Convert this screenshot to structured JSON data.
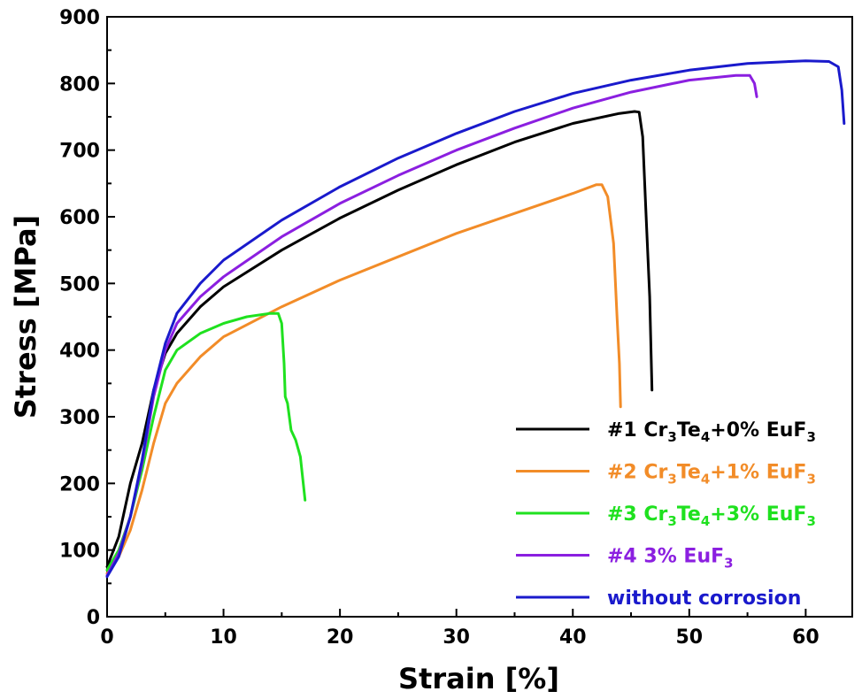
{
  "chart_data": {
    "type": "line",
    "title": "",
    "xlabel": "Strain [%]",
    "ylabel": "Stress [MPa]",
    "xlim": [
      0,
      64
    ],
    "ylim": [
      0,
      900
    ],
    "xticks": [
      0,
      10,
      20,
      30,
      40,
      50,
      60
    ],
    "yticks": [
      0,
      100,
      200,
      300,
      400,
      500,
      600,
      700,
      800,
      900
    ],
    "grid": false,
    "legend_position": "bottom-right",
    "series": [
      {
        "name": "#1 Cr3Te4+0% EuF3",
        "legend": {
          "a": "#1 Cr",
          "s1": "3",
          "b": "Te",
          "s2": "4",
          "c": "+0% EuF",
          "s3": "3"
        },
        "color": "#000000",
        "points": [
          [
            0,
            75
          ],
          [
            1,
            120
          ],
          [
            2,
            200
          ],
          [
            3,
            260
          ],
          [
            4,
            340
          ],
          [
            5,
            395
          ],
          [
            6,
            425
          ],
          [
            8,
            465
          ],
          [
            10,
            495
          ],
          [
            15,
            550
          ],
          [
            20,
            598
          ],
          [
            25,
            640
          ],
          [
            30,
            678
          ],
          [
            35,
            712
          ],
          [
            40,
            740
          ],
          [
            44,
            755
          ],
          [
            45.3,
            758
          ],
          [
            45.7,
            757
          ],
          [
            46.0,
            720
          ],
          [
            46.3,
            600
          ],
          [
            46.6,
            480
          ],
          [
            46.8,
            340
          ]
        ]
      },
      {
        "name": "#2 Cr3Te4+1% EuF3",
        "legend": {
          "a": "#2 Cr",
          "s1": "3",
          "b": "Te",
          "s2": "4",
          "c": "+1% EuF",
          "s3": "3"
        },
        "color": "#F28C28",
        "points": [
          [
            0,
            65
          ],
          [
            1,
            90
          ],
          [
            2,
            130
          ],
          [
            3,
            190
          ],
          [
            4,
            260
          ],
          [
            5,
            320
          ],
          [
            6,
            350
          ],
          [
            8,
            390
          ],
          [
            10,
            420
          ],
          [
            15,
            465
          ],
          [
            20,
            505
          ],
          [
            25,
            540
          ],
          [
            30,
            575
          ],
          [
            35,
            605
          ],
          [
            40,
            635
          ],
          [
            42,
            648
          ],
          [
            42.5,
            648
          ],
          [
            43,
            630
          ],
          [
            43.5,
            560
          ],
          [
            43.8,
            450
          ],
          [
            44.0,
            380
          ],
          [
            44.1,
            315
          ]
        ]
      },
      {
        "name": "#3 Cr3Te4+3% EuF3",
        "legend": {
          "a": "#3 Cr",
          "s1": "3",
          "b": "Te",
          "s2": "4",
          "c": "+3% EuF",
          "s3": "3"
        },
        "color": "#1FE11F",
        "points": [
          [
            0,
            70
          ],
          [
            1,
            100
          ],
          [
            2,
            150
          ],
          [
            3,
            220
          ],
          [
            4,
            300
          ],
          [
            5,
            370
          ],
          [
            6,
            400
          ],
          [
            8,
            425
          ],
          [
            10,
            440
          ],
          [
            12,
            450
          ],
          [
            14,
            455
          ],
          [
            14.7,
            455
          ],
          [
            15.0,
            440
          ],
          [
            15.2,
            380
          ],
          [
            15.3,
            330
          ],
          [
            15.5,
            320
          ],
          [
            15.8,
            280
          ],
          [
            16.2,
            265
          ],
          [
            16.6,
            240
          ],
          [
            17.0,
            175
          ]
        ]
      },
      {
        "name": "#4 3% EuF3",
        "legend": {
          "a": "#4 3% EuF",
          "s1": "",
          "b": "",
          "s2": "",
          "c": "",
          "s3": "3"
        },
        "color": "#8B1FE0",
        "points": [
          [
            0,
            62
          ],
          [
            1,
            95
          ],
          [
            2,
            150
          ],
          [
            3,
            230
          ],
          [
            4,
            330
          ],
          [
            5,
            400
          ],
          [
            6,
            440
          ],
          [
            8,
            480
          ],
          [
            10,
            510
          ],
          [
            15,
            570
          ],
          [
            20,
            620
          ],
          [
            25,
            662
          ],
          [
            30,
            700
          ],
          [
            35,
            733
          ],
          [
            40,
            763
          ],
          [
            45,
            787
          ],
          [
            50,
            805
          ],
          [
            54,
            812
          ],
          [
            55.2,
            812
          ],
          [
            55.6,
            800
          ],
          [
            55.8,
            780
          ]
        ]
      },
      {
        "name": "without corrosion",
        "legend": {
          "a": "without corrosion",
          "s1": "",
          "b": "",
          "s2": "",
          "c": "",
          "s3": ""
        },
        "color": "#1A1ACC",
        "points": [
          [
            0,
            60
          ],
          [
            1,
            90
          ],
          [
            2,
            150
          ],
          [
            3,
            235
          ],
          [
            4,
            340
          ],
          [
            5,
            410
          ],
          [
            6,
            455
          ],
          [
            8,
            500
          ],
          [
            10,
            535
          ],
          [
            15,
            595
          ],
          [
            20,
            645
          ],
          [
            25,
            688
          ],
          [
            30,
            725
          ],
          [
            35,
            758
          ],
          [
            40,
            785
          ],
          [
            45,
            805
          ],
          [
            50,
            820
          ],
          [
            55,
            830
          ],
          [
            60,
            834
          ],
          [
            62,
            833
          ],
          [
            62.8,
            825
          ],
          [
            63.1,
            790
          ],
          [
            63.3,
            740
          ]
        ]
      }
    ]
  }
}
